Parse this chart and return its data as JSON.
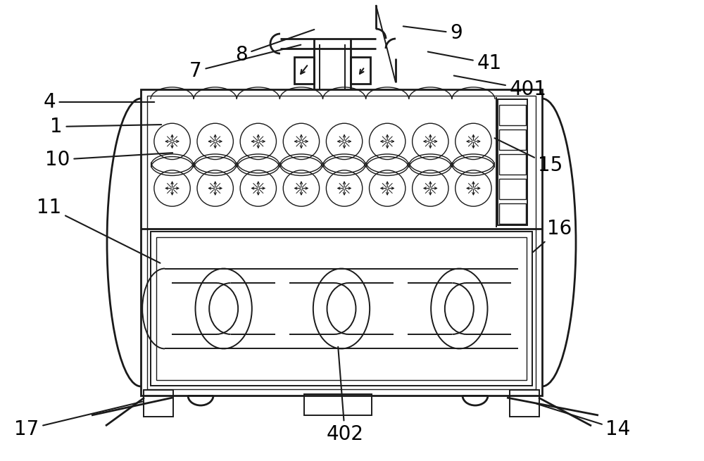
{
  "bg_color": "#ffffff",
  "line_color": "#1a1a1a",
  "fig_width": 10.0,
  "fig_height": 6.55,
  "label_fontsize": 20
}
